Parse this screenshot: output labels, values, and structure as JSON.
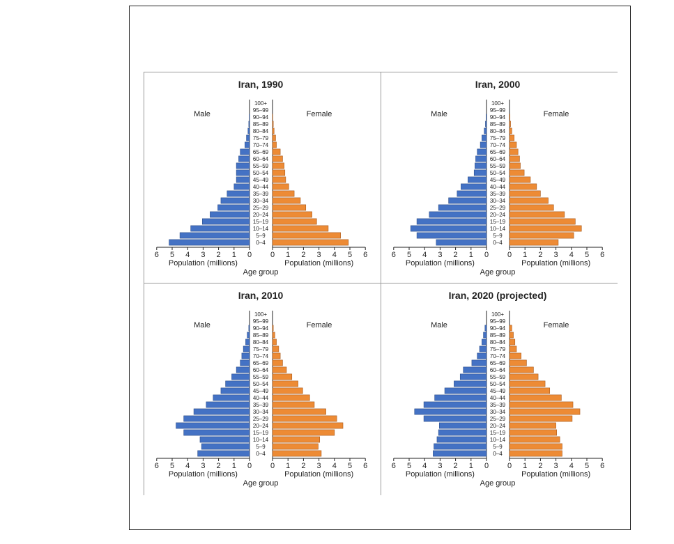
{
  "chart_data": [
    {
      "type": "bar",
      "title": "Iran, 1990",
      "male_label": "Male",
      "female_label": "Female",
      "xlabel_male": "Population (millions)",
      "xlabel_female": "Population (millions)",
      "age_axis_label": "Age group",
      "age_groups": [
        "100+",
        "95–99",
        "90–94",
        "85–89",
        "80–84",
        "75–79",
        "70–74",
        "65–69",
        "60–64",
        "55–59",
        "50–54",
        "45–49",
        "40–44",
        "35–39",
        "30–34",
        "25–29",
        "20–24",
        "15–19",
        "10–14",
        "5–9",
        "0–4"
      ],
      "xlim": [
        0,
        6
      ],
      "ticks": [
        0,
        1,
        2,
        3,
        4,
        5,
        6
      ],
      "series": [
        {
          "name": "Male",
          "color": "#4472c4",
          "values": [
            0,
            0,
            0.02,
            0.05,
            0.1,
            0.2,
            0.3,
            0.6,
            0.7,
            0.85,
            0.85,
            0.85,
            1.0,
            1.45,
            1.85,
            2.05,
            2.55,
            3.05,
            3.8,
            4.5,
            5.2
          ]
        },
        {
          "name": "Female",
          "color": "#ed8b35",
          "values": [
            0,
            0,
            0.02,
            0.05,
            0.1,
            0.2,
            0.25,
            0.5,
            0.65,
            0.75,
            0.8,
            0.85,
            1.05,
            1.4,
            1.8,
            2.15,
            2.55,
            2.85,
            3.6,
            4.4,
            4.9
          ]
        }
      ]
    },
    {
      "type": "bar",
      "title": "Iran, 2000",
      "male_label": "Male",
      "female_label": "Female",
      "xlabel_male": "Population (millions)",
      "xlabel_female": "Population (millions)",
      "age_axis_label": "Age group",
      "age_groups": [
        "100+",
        "95–99",
        "90–94",
        "85–89",
        "80–84",
        "75–79",
        "70–74",
        "65–69",
        "60–64",
        "55–59",
        "50–54",
        "45–49",
        "40–44",
        "35–39",
        "30–34",
        "25–29",
        "20–24",
        "15–19",
        "10–14",
        "5–9",
        "0–4"
      ],
      "xlim": [
        0,
        6
      ],
      "ticks": [
        0,
        1,
        2,
        3,
        4,
        5,
        6
      ],
      "series": [
        {
          "name": "Male",
          "color": "#4472c4",
          "values": [
            0,
            0,
            0.03,
            0.07,
            0.15,
            0.3,
            0.4,
            0.6,
            0.7,
            0.75,
            0.8,
            1.2,
            1.65,
            1.9,
            2.45,
            3.1,
            3.7,
            4.5,
            4.9,
            4.5,
            3.25
          ]
        },
        {
          "name": "Female",
          "color": "#ed8b35",
          "values": [
            0,
            0,
            0.03,
            0.07,
            0.15,
            0.3,
            0.45,
            0.55,
            0.65,
            0.7,
            0.95,
            1.35,
            1.75,
            2.0,
            2.5,
            2.85,
            3.55,
            4.25,
            4.65,
            4.15,
            3.15
          ]
        }
      ]
    },
    {
      "type": "bar",
      "title": "Iran, 2010",
      "male_label": "Male",
      "female_label": "Female",
      "xlabel_male": "Population (millions)",
      "xlabel_female": "Population (millions)",
      "age_axis_label": "Age group",
      "age_groups": [
        "100+",
        "95–99",
        "90–94",
        "85–89",
        "80–84",
        "75–79",
        "70–74",
        "65–69",
        "60–64",
        "55–59",
        "50–54",
        "45–49",
        "40–44",
        "35–39",
        "30–34",
        "25–29",
        "20–24",
        "15–19",
        "10–14",
        "5–9",
        "0–4"
      ],
      "xlim": [
        0,
        6
      ],
      "ticks": [
        0,
        1,
        2,
        3,
        4,
        5,
        6
      ],
      "series": [
        {
          "name": "Male",
          "color": "#4472c4",
          "values": [
            0,
            0,
            0.05,
            0.15,
            0.25,
            0.4,
            0.5,
            0.6,
            0.85,
            1.15,
            1.55,
            1.85,
            2.35,
            2.8,
            3.6,
            4.25,
            4.75,
            4.25,
            3.2,
            3.1,
            3.35
          ]
        },
        {
          "name": "Female",
          "color": "#ed8b35",
          "values": [
            0,
            0,
            0.05,
            0.15,
            0.25,
            0.4,
            0.5,
            0.65,
            0.9,
            1.25,
            1.65,
            1.95,
            2.4,
            2.7,
            3.45,
            4.15,
            4.55,
            4.0,
            3.05,
            2.95,
            3.15
          ]
        }
      ]
    },
    {
      "type": "bar",
      "title": "Iran, 2020 (projected)",
      "male_label": "Male",
      "female_label": "Female",
      "xlabel_male": "Population (millions)",
      "xlabel_female": "Population (millions)",
      "age_axis_label": "Age group",
      "age_groups": [
        "100+",
        "95–99",
        "90–94",
        "85–89",
        "80–84",
        "75–79",
        "70–74",
        "65–69",
        "60–64",
        "55–59",
        "50–54",
        "45–49",
        "40–44",
        "35–39",
        "30–34",
        "25–29",
        "20–24",
        "15–19",
        "10–14",
        "5–9",
        "0–4"
      ],
      "xlim": [
        0,
        6
      ],
      "ticks": [
        0,
        1,
        2,
        3,
        4,
        5,
        6
      ],
      "series": [
        {
          "name": "Male",
          "color": "#4472c4",
          "values": [
            0,
            0,
            0.1,
            0.2,
            0.3,
            0.45,
            0.6,
            0.95,
            1.5,
            1.7,
            2.1,
            2.7,
            3.35,
            4.05,
            4.65,
            4.05,
            3.05,
            3.1,
            3.2,
            3.4,
            3.45
          ]
        },
        {
          "name": "Female",
          "color": "#ed8b35",
          "values": [
            0,
            0,
            0.15,
            0.25,
            0.35,
            0.45,
            0.75,
            1.1,
            1.55,
            1.85,
            2.3,
            2.6,
            3.35,
            4.1,
            4.55,
            4.05,
            3.0,
            3.05,
            3.25,
            3.4,
            3.4
          ]
        }
      ]
    }
  ]
}
